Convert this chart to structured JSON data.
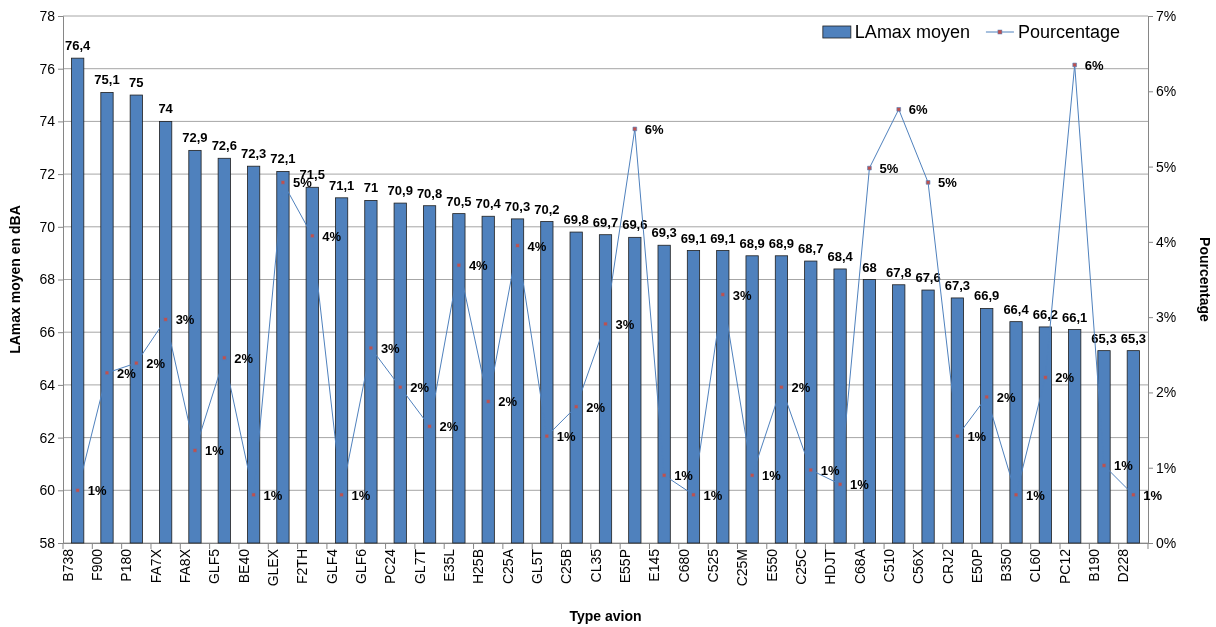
{
  "chart_data": {
    "type": "bar",
    "xlabel": "Type avion",
    "ylabel": "LAmax moyen en dBA",
    "y2label": "Pourcentage",
    "categories": [
      "B738",
      "F900",
      "P180",
      "FA7X",
      "FA8X",
      "GLF5",
      "BE40",
      "GLEX",
      "F2TH",
      "GLF4",
      "GLF6",
      "PC24",
      "GL7T",
      "E35L",
      "H25B",
      "C25A",
      "GL5T",
      "C25B",
      "CL35",
      "E55P",
      "E145",
      "C680",
      "C525",
      "C25M",
      "E550",
      "C25C",
      "HDJT",
      "C68A",
      "C510",
      "C56X",
      "CRJ2",
      "E50P",
      "B350",
      "CL60",
      "PC12",
      "B190",
      "D228"
    ],
    "series": [
      {
        "name": "LAmax moyen",
        "color": "#4f81bd",
        "values": [
          76.4,
          75.1,
          75,
          74,
          72.9,
          72.6,
          72.3,
          72.1,
          71.5,
          71.1,
          71,
          70.9,
          70.8,
          70.5,
          70.4,
          70.3,
          70.2,
          69.8,
          69.7,
          69.6,
          69.3,
          69.1,
          69.1,
          68.9,
          68.9,
          68.7,
          68.4,
          68,
          67.8,
          67.6,
          67.3,
          66.9,
          66.4,
          66.2,
          66.1,
          65.3,
          65.3
        ],
        "value_labels": [
          "76,4",
          "75,1",
          "75",
          "74",
          "72,9",
          "72,6",
          "72,3",
          "72,1",
          "71,5",
          "71,1",
          "71",
          "70,9",
          "70,8",
          "70,5",
          "70,4",
          "70,3",
          "70,2",
          "69,8",
          "69,7",
          "69,6",
          "69,3",
          "69,1",
          "69,1",
          "68,9",
          "68,9",
          "68,7",
          "68,4",
          "68",
          "67,8",
          "67,6",
          "67,3",
          "66,9",
          "66,4",
          "66,2",
          "66,1",
          "65,3",
          "65,3"
        ]
      },
      {
        "name": "Pourcentage",
        "type": "line",
        "axis": "y2",
        "color": "#4f81bd",
        "marker": "square",
        "values": [
          0.7,
          2.26,
          2.39,
          2.97,
          1.23,
          2.46,
          0.64,
          4.79,
          4.08,
          0.64,
          2.59,
          2.07,
          1.55,
          3.69,
          1.88,
          3.95,
          1.42,
          1.81,
          2.91,
          5.5,
          0.9,
          0.64,
          3.3,
          0.9,
          2.07,
          0.97,
          0.78,
          4.98,
          5.76,
          4.79,
          1.42,
          1.94,
          0.64,
          2.2,
          6.35,
          1.03,
          0.64
        ],
        "value_labels": [
          "1%",
          "2%",
          "2%",
          "3%",
          "1%",
          "2%",
          "1%",
          "5%",
          "4%",
          "1%",
          "3%",
          "2%",
          "2%",
          "4%",
          "2%",
          "4%",
          "1%",
          "2%",
          "3%",
          "6%",
          "1%",
          "1%",
          "3%",
          "1%",
          "2%",
          "1%",
          "1%",
          "5%",
          "6%",
          "5%",
          "1%",
          "2%",
          "1%",
          "2%",
          "6%",
          "1%",
          "1%"
        ]
      }
    ],
    "ylim": [
      58,
      78
    ],
    "yticks": [
      58,
      60,
      62,
      64,
      66,
      68,
      70,
      72,
      74,
      76,
      78
    ],
    "y2lim": [
      0,
      7
    ],
    "y2ticks": [
      {
        "value": 0,
        "label": "0%"
      },
      {
        "value": 1,
        "label": "1%"
      },
      {
        "value": 2,
        "label": "2%"
      },
      {
        "value": 3,
        "label": "3%"
      },
      {
        "value": 4,
        "label": "4%"
      },
      {
        "value": 5,
        "label": "5%"
      },
      {
        "value": 6,
        "label": "6%"
      },
      {
        "value": 7,
        "label": "7%"
      }
    ],
    "grid": "y",
    "legend": "top right",
    "line_style": "solid"
  }
}
